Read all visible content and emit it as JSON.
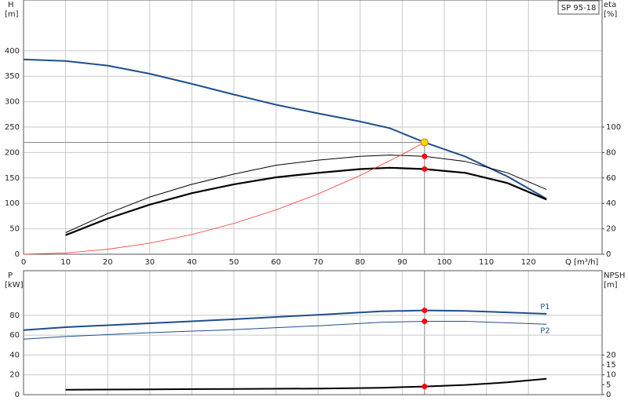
{
  "chart_data": [
    {
      "type": "line",
      "badge": "SP 95-18",
      "y_label": "H",
      "y_unit": "[m]",
      "y2_label": "eta",
      "y2_unit": "[%]",
      "x_label": "Q [m³/h]",
      "xlim": [
        0,
        137.5
      ],
      "xticks": [
        0,
        10,
        20,
        30,
        40,
        50,
        60,
        70,
        80,
        90,
        100,
        110,
        120
      ],
      "ylim": [
        0,
        500
      ],
      "yticks": [
        0,
        50,
        100,
        150,
        200,
        250,
        300,
        350,
        400
      ],
      "y2lim": [
        0,
        200
      ],
      "y2ticks": [
        0,
        20,
        40,
        60,
        80,
        100
      ],
      "grid": true,
      "operating_point": {
        "x": 95.3,
        "y": 220,
        "color": "#ffd700"
      },
      "series": [
        {
          "color": "#1f4e8c",
          "width": 2,
          "axis": "y",
          "x": [
            0,
            10,
            20,
            30,
            40,
            50,
            60,
            70,
            80,
            87,
            95.3,
            105,
            115,
            124.3
          ],
          "values": [
            383,
            380,
            371,
            355,
            335,
            314,
            294,
            277,
            261,
            248,
            220,
            192,
            153,
            109
          ]
        },
        {
          "color": "#000000",
          "width": 1,
          "axis": "y2",
          "x": [
            10,
            20,
            30,
            40,
            50,
            60,
            70,
            80,
            87,
            95.3,
            105,
            115,
            124.3
          ],
          "values": [
            17,
            32,
            45,
            55,
            63,
            70,
            74,
            77,
            78,
            77,
            73,
            64,
            51
          ]
        },
        {
          "color": "#000000",
          "width": 2.2,
          "axis": "y2",
          "x": [
            10,
            20,
            30,
            40,
            50,
            60,
            70,
            80,
            87,
            95.3,
            105,
            115,
            124.3
          ],
          "values": [
            15,
            28,
            39,
            48,
            55,
            60.5,
            64,
            67,
            68,
            67,
            64,
            56,
            43
          ]
        },
        {
          "color": "#ff3030",
          "width": 0.8,
          "axis": "y",
          "x": [
            0,
            10,
            20,
            30,
            40,
            50,
            60,
            70,
            80,
            90,
            95.3
          ],
          "values": [
            0,
            2.4,
            9.7,
            21.8,
            38.8,
            60.6,
            87.2,
            118.7,
            155,
            196.2,
            220
          ]
        }
      ],
      "markers": [
        {
          "x": 95.3,
          "y": 77,
          "axis": "y2",
          "color": "#ff0000"
        },
        {
          "x": 95.3,
          "y": 67,
          "axis": "y2",
          "color": "#ff0000"
        }
      ]
    },
    {
      "type": "line",
      "y_label": "P",
      "y_unit": "[kW]",
      "y2_label": "NPSH",
      "y2_unit": "[m]",
      "xlim": [
        0,
        137.5
      ],
      "ylim": [
        0,
        125
      ],
      "yticks": [
        0,
        20,
        40,
        60,
        80
      ],
      "y2lim": [
        0,
        62.5
      ],
      "y2ticks": [
        0,
        5,
        10,
        15,
        20
      ],
      "grid": true,
      "series": [
        {
          "name": "P1",
          "color": "#1f4e8c",
          "width": 2,
          "axis": "y",
          "x": [
            0,
            10,
            30,
            50,
            70,
            85,
            95.3,
            105,
            124.3
          ],
          "values": [
            65,
            68,
            72,
            76,
            80.5,
            84,
            85,
            84.5,
            81.5
          ]
        },
        {
          "name": "P2",
          "color": "#1f4e8c",
          "width": 1,
          "axis": "y",
          "x": [
            0,
            10,
            30,
            50,
            70,
            85,
            95.3,
            105,
            124.3
          ],
          "values": [
            56,
            58.6,
            62.5,
            65.6,
            69.5,
            73,
            74,
            74,
            71
          ]
        },
        {
          "color": "#000000",
          "width": 2,
          "axis": "y2",
          "x": [
            10,
            30,
            50,
            70,
            85,
            95.3,
            105,
            115,
            124.3
          ],
          "values": [
            2.5,
            2.7,
            2.9,
            3.1,
            3.5,
            4.1,
            4.9,
            6.2,
            8
          ]
        }
      ],
      "markers": [
        {
          "x": 95.3,
          "y": 85,
          "axis": "y",
          "color": "#ff0000"
        },
        {
          "x": 95.3,
          "y": 74,
          "axis": "y",
          "color": "#ff0000"
        },
        {
          "x": 95.3,
          "y": 4.1,
          "axis": "y2",
          "color": "#ff0000"
        }
      ]
    }
  ]
}
